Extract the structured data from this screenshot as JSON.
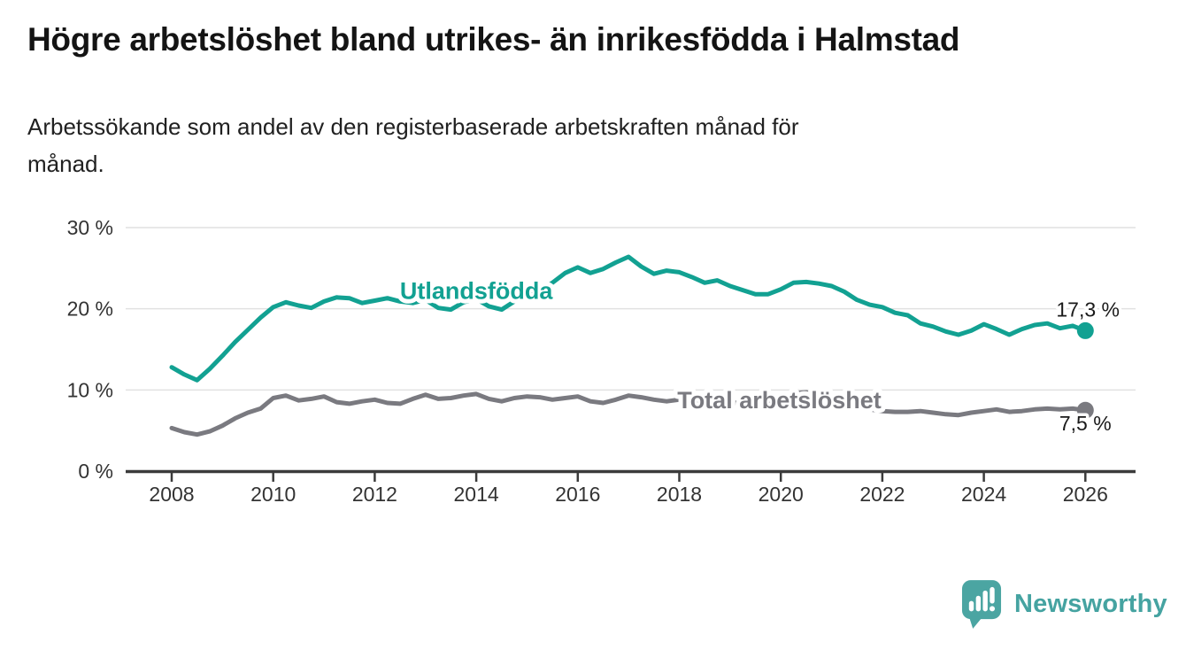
{
  "title": "Högre arbetslöshet bland utrikes- än inrikesfödda i Halmstad",
  "subtitle": "Arbetssökande som andel av den registerbaserade arbetskraften månad för\nmånad.",
  "branding": {
    "name": "Newsworthy",
    "icon": "bar-chart-speech-bubble-icon",
    "icon_color": "#4BA5A2",
    "text_color": "#45A3A1"
  },
  "chart_data": {
    "type": "line",
    "x_unit": "year (monthly data, sampled quarterly)",
    "x_start": 2008.0,
    "x_step": 0.25,
    "x_end": 2026.0,
    "xlim": [
      2007.1,
      2027.0
    ],
    "ylim": [
      0,
      33
    ],
    "grid": {
      "horizontal": true,
      "color": "#e1e1e1"
    },
    "axis_color": "#3b3b3b",
    "tick_label_color": "#333333",
    "yticks": [
      {
        "value": 0,
        "label": "0 %"
      },
      {
        "value": 10,
        "label": "10 %"
      },
      {
        "value": 20,
        "label": "20 %"
      },
      {
        "value": 30,
        "label": "30 %"
      }
    ],
    "xticks": [
      {
        "value": 2008,
        "label": "2008"
      },
      {
        "value": 2010,
        "label": "2010"
      },
      {
        "value": 2012,
        "label": "2012"
      },
      {
        "value": 2014,
        "label": "2014"
      },
      {
        "value": 2016,
        "label": "2016"
      },
      {
        "value": 2018,
        "label": "2018"
      },
      {
        "value": 2020,
        "label": "2020"
      },
      {
        "value": 2022,
        "label": "2022"
      },
      {
        "value": 2024,
        "label": "2024"
      },
      {
        "value": 2026,
        "label": "2026"
      }
    ],
    "series": [
      {
        "name": "Utlandsfödda",
        "color": "#12A192",
        "label_pos": {
          "x": 2014.0,
          "y": 21.2
        },
        "end_label": "17,3 %",
        "end_label_pos": {
          "x": 2026.05,
          "y": 19.05
        },
        "end_value": 17.3,
        "values": [
          12.8,
          11.9,
          11.2,
          12.6,
          14.2,
          15.9,
          17.4,
          18.9,
          20.2,
          20.8,
          20.4,
          20.1,
          20.9,
          21.4,
          21.3,
          20.7,
          21.0,
          21.3,
          20.9,
          20.7,
          21.1,
          20.1,
          19.9,
          20.8,
          21.2,
          20.3,
          19.9,
          20.9,
          21.4,
          22.2,
          23.2,
          24.4,
          25.1,
          24.4,
          24.9,
          25.7,
          26.4,
          25.2,
          24.3,
          24.7,
          24.5,
          23.9,
          23.2,
          23.5,
          22.8,
          22.3,
          21.8,
          21.8,
          22.4,
          23.2,
          23.3,
          23.1,
          22.8,
          22.1,
          21.1,
          20.5,
          20.2,
          19.5,
          19.2,
          18.2,
          17.8,
          17.2,
          16.8,
          17.3,
          18.1,
          17.5,
          16.8,
          17.5,
          18.0,
          18.2,
          17.6,
          17.9,
          17.3
        ]
      },
      {
        "name": "Total arbetslöshet",
        "color": "#7A7A80",
        "label_pos": {
          "x": 2019.97,
          "y": 7.75
        },
        "end_label": "7,5 %",
        "end_label_pos": {
          "x": 2026.0,
          "y": 5.0
        },
        "end_value": 7.5,
        "values": [
          5.3,
          4.8,
          4.5,
          4.9,
          5.6,
          6.5,
          7.2,
          7.7,
          9.0,
          9.3,
          8.7,
          8.9,
          9.2,
          8.5,
          8.3,
          8.6,
          8.8,
          8.4,
          8.3,
          8.9,
          9.4,
          8.9,
          9.0,
          9.3,
          9.5,
          8.9,
          8.6,
          9.0,
          9.2,
          9.1,
          8.8,
          9.0,
          9.2,
          8.6,
          8.4,
          8.8,
          9.3,
          9.1,
          8.8,
          8.6,
          8.8,
          8.5,
          8.2,
          8.4,
          8.5,
          8.3,
          8.2,
          8.4,
          8.8,
          9.6,
          9.7,
          9.3,
          9.0,
          8.4,
          7.9,
          7.6,
          7.4,
          7.3,
          7.3,
          7.4,
          7.2,
          7.0,
          6.9,
          7.2,
          7.4,
          7.6,
          7.3,
          7.4,
          7.6,
          7.7,
          7.6,
          7.7,
          7.5
        ]
      }
    ]
  }
}
